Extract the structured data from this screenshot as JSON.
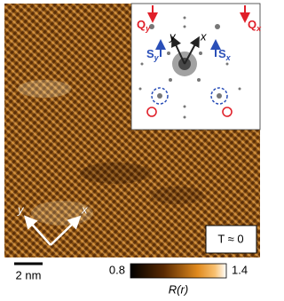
{
  "figure": {
    "inset": {
      "q_y": {
        "main": "Q",
        "sub": "y"
      },
      "q_x": {
        "main": "Q",
        "sub": "x"
      },
      "s_y": {
        "main": "S",
        "sub": "y"
      },
      "s_x": {
        "main": "S",
        "sub": "x"
      },
      "axis_y": "y",
      "axis_x": "x"
    },
    "axes": {
      "y": "y",
      "x": "x"
    },
    "temperature": "T ≈ 0",
    "scale_bar": "2 nm",
    "colorbar": {
      "min": 0.8,
      "max": 1.4,
      "label": "R(r)"
    }
  }
}
